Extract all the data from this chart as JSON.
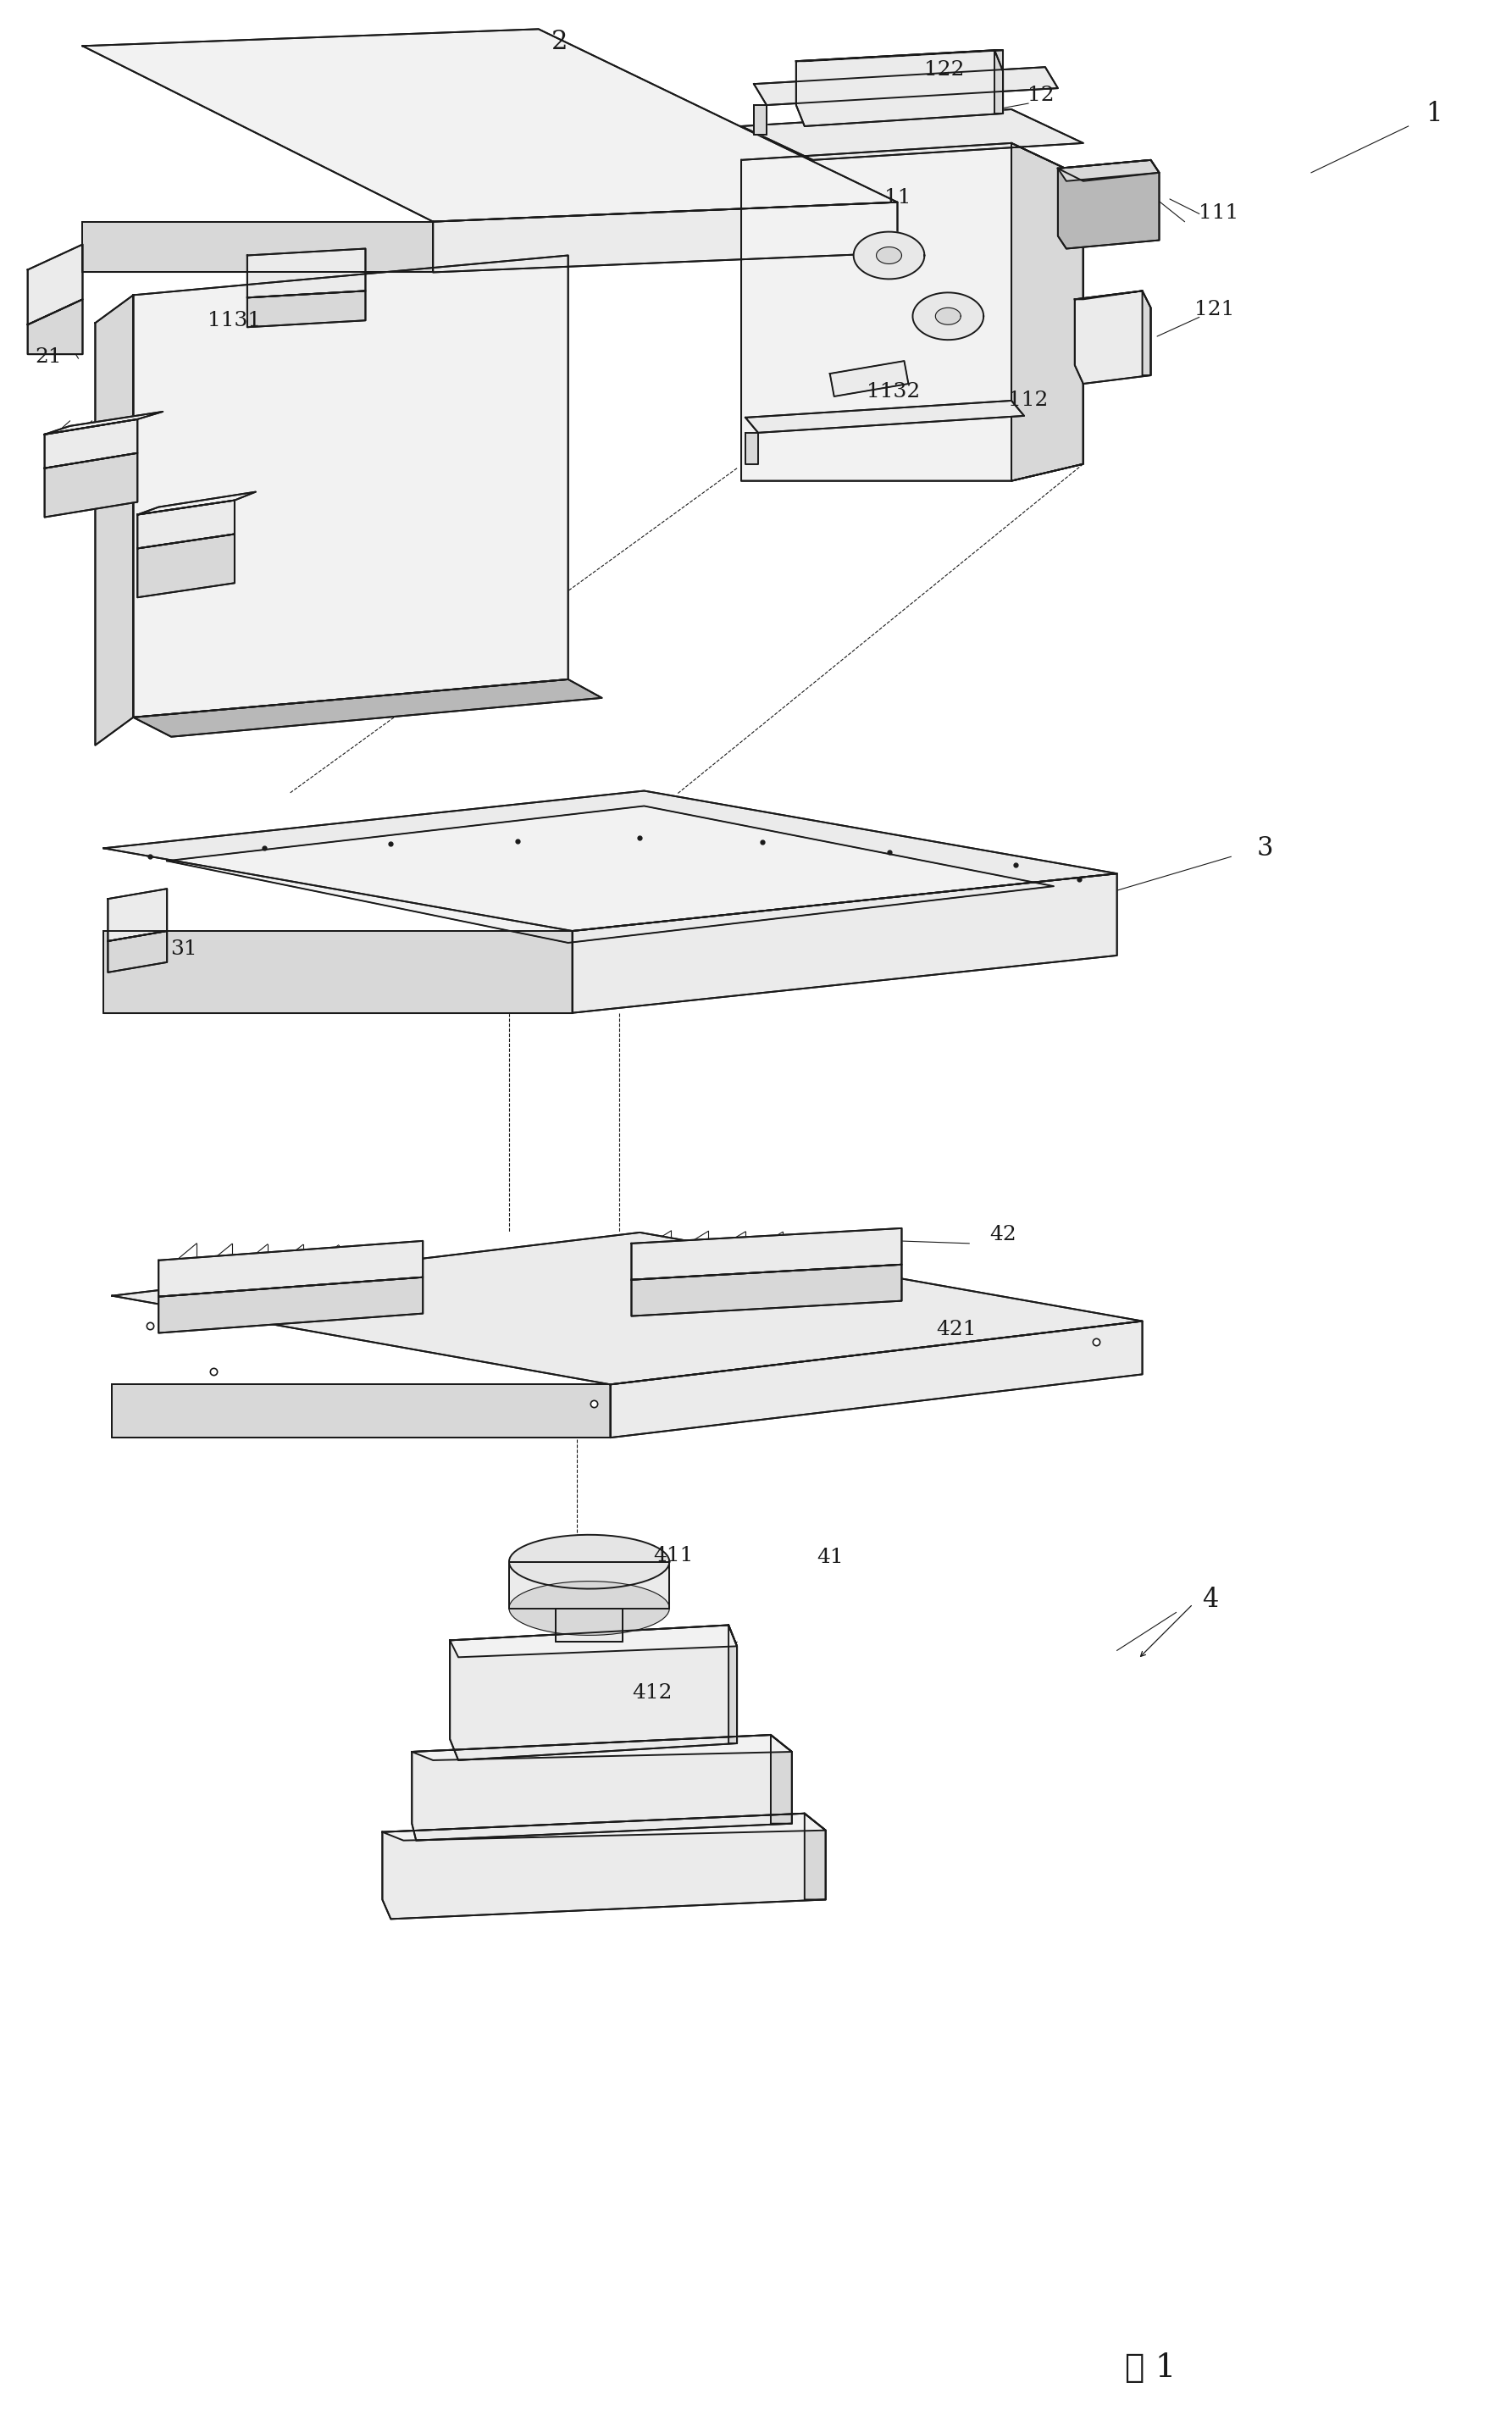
{
  "bg_color": "#ffffff",
  "line_color": "#1a1a1a",
  "fig_width": 17.85,
  "fig_height": 28.45,
  "lw_main": 1.4,
  "lw_thin": 0.8,
  "caption": "图 1",
  "gray_light": "#f2f2f2",
  "gray_mid": "#d8d8d8",
  "gray_dark": "#b8b8b8",
  "gray_face": "#ebebeb"
}
